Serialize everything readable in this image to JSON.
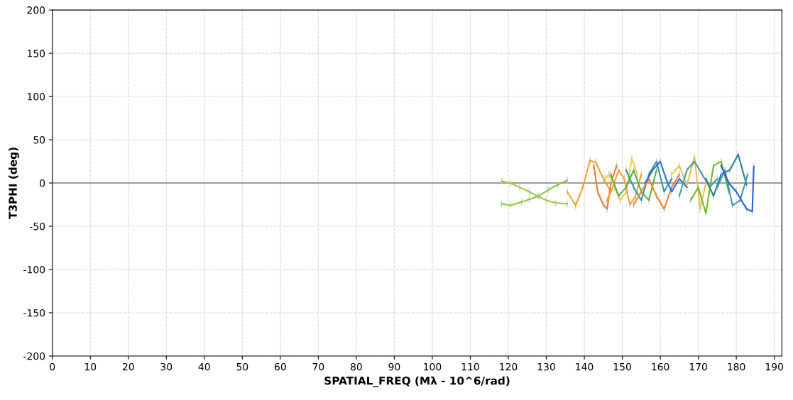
{
  "chart_data": {
    "type": "line",
    "xlabel": "SPATIAL_FREQ (Mλ - 10^6/rad)",
    "ylabel": "T3PHI (deg)",
    "xlim": [
      0,
      192
    ],
    "xticks": [
      0,
      10,
      20,
      30,
      40,
      50,
      60,
      70,
      80,
      90,
      100,
      110,
      120,
      130,
      140,
      150,
      160,
      170,
      180,
      190
    ],
    "ylim": [
      -200,
      200
    ],
    "yticks": [
      -200,
      -150,
      -100,
      -50,
      0,
      50,
      100,
      150,
      200
    ],
    "grid": true,
    "marker": "none",
    "line_style": "solid",
    "ref_lines": [
      {
        "axis": "y",
        "value": 0,
        "color": "#808080"
      }
    ],
    "series": [
      {
        "color": "#9acd32",
        "x": [
          118.2,
          120.5,
          123,
          125.5,
          127.6,
          130,
          132.5,
          135.5
        ],
        "values": [
          2,
          0,
          -5,
          -10,
          -15,
          -20,
          -23,
          -24
        ],
        "errors": [
          4,
          4,
          4,
          4,
          4,
          4,
          4,
          4
        ]
      },
      {
        "color": "#8cc63f",
        "x": [
          118.2,
          120.5,
          123.5,
          125.5,
          128,
          130.5,
          133,
          135.5
        ],
        "values": [
          -24,
          -26,
          -22,
          -19,
          -15,
          -8,
          -2,
          3
        ],
        "errors": [
          4,
          4,
          4,
          4,
          4,
          4,
          4,
          4
        ]
      },
      {
        "color": "#f5a030",
        "x": [
          135.5,
          137.7,
          139.6,
          141.5,
          143,
          145,
          147
        ],
        "values": [
          -10,
          -26,
          -5,
          26,
          24,
          5,
          -10
        ],
        "errors": [
          4,
          4,
          4,
          4,
          4,
          4,
          4
        ]
      },
      {
        "color": "#f07830",
        "x": [
          142.5,
          143.5,
          145,
          146,
          147,
          148.5
        ],
        "values": [
          20,
          -10,
          -25,
          -30,
          0,
          20
        ],
        "errors": [
          4,
          4,
          4,
          4,
          4,
          4
        ]
      },
      {
        "color": "#f0d040",
        "x": [
          145.5,
          146.5,
          148,
          149.5,
          151,
          152.5,
          154
        ],
        "values": [
          5,
          10,
          -5,
          -20,
          -10,
          28,
          10
        ],
        "errors": [
          4,
          4,
          4,
          4,
          4,
          4,
          4
        ]
      },
      {
        "color": "#ffa030",
        "x": [
          146,
          147.5,
          149,
          150.5,
          152,
          153.5,
          155
        ],
        "values": [
          -20,
          -5,
          15,
          5,
          -25,
          -15,
          10
        ],
        "errors": [
          4,
          4,
          4,
          4,
          4,
          4,
          4
        ]
      },
      {
        "color": "#5ab040",
        "x": [
          147,
          149,
          151,
          153,
          155,
          157,
          159
        ],
        "values": [
          10,
          -15,
          -5,
          15,
          -10,
          -20,
          15
        ],
        "errors": [
          4,
          4,
          4,
          4,
          4,
          4,
          4
        ]
      },
      {
        "color": "#2f9aa0",
        "x": [
          151,
          153,
          155,
          157,
          159,
          161,
          163
        ],
        "values": [
          15,
          -5,
          -20,
          10,
          25,
          -10,
          5
        ],
        "errors": [
          4,
          4,
          4,
          4,
          4,
          4,
          4
        ]
      },
      {
        "color": "#f08030",
        "x": [
          153,
          155,
          157,
          159,
          161,
          163,
          165
        ],
        "values": [
          -25,
          -10,
          5,
          -15,
          -30,
          -5,
          10
        ],
        "errors": [
          4,
          4,
          4,
          4,
          4,
          4,
          4
        ]
      },
      {
        "color": "#2a70e0",
        "x": [
          156,
          158,
          160,
          161.5,
          163,
          165,
          167
        ],
        "values": [
          0,
          15,
          25,
          5,
          -10,
          5,
          -5
        ],
        "errors": [
          4,
          4,
          4,
          4,
          4,
          4,
          4
        ]
      },
      {
        "color": "#f0c040",
        "x": [
          163,
          165,
          167,
          169,
          170.5,
          172
        ],
        "values": [
          10,
          20,
          -2,
          30,
          -30,
          0
        ],
        "errors": [
          4,
          4,
          4,
          4,
          4,
          4
        ]
      },
      {
        "color": "#40a0a0",
        "x": [
          165,
          167,
          169,
          171,
          173,
          175
        ],
        "values": [
          -15,
          15,
          25,
          10,
          -5,
          5
        ],
        "errors": [
          4,
          4,
          4,
          4,
          4,
          4
        ]
      },
      {
        "color": "#70b830",
        "x": [
          168,
          170,
          172,
          174,
          176,
          178
        ],
        "values": [
          -20,
          -5,
          -35,
          20,
          25,
          -10
        ],
        "errors": [
          4,
          4,
          4,
          4,
          4,
          4
        ]
      },
      {
        "color": "#2a8090",
        "x": [
          172,
          174,
          176,
          178.3,
          180.5,
          182.7
        ],
        "values": [
          5,
          -15,
          10,
          15,
          33,
          -2
        ],
        "errors": [
          4,
          4,
          4,
          4,
          4,
          4
        ]
      },
      {
        "color": "#3a9ab0",
        "x": [
          175,
          177,
          179,
          181,
          183
        ],
        "values": [
          -5,
          15,
          -26,
          -20,
          10
        ],
        "errors": [
          4,
          4,
          4,
          4,
          4
        ]
      },
      {
        "color": "#2060e0",
        "x": [
          176,
          178,
          180,
          182.7,
          184.2,
          184.6
        ],
        "values": [
          20,
          0,
          -10,
          -30,
          -33,
          19
        ],
        "errors": [
          4,
          4,
          4,
          4,
          4,
          4
        ]
      }
    ]
  }
}
